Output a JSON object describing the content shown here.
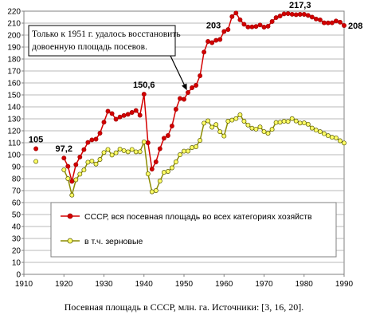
{
  "chart_data": {
    "type": "line",
    "xlim": [
      1910,
      1990
    ],
    "ylim": [
      0,
      220
    ],
    "x_ticks": [
      1910,
      1920,
      1930,
      1940,
      1950,
      1960,
      1970,
      1980,
      1990
    ],
    "y_ticks": [
      0,
      10,
      20,
      30,
      40,
      50,
      60,
      70,
      80,
      90,
      100,
      110,
      120,
      130,
      140,
      150,
      160,
      170,
      180,
      190,
      200,
      210,
      220
    ],
    "grid": true,
    "legend_position": "inside-bottom",
    "series": [
      {
        "name": "СССР, вся посевная площадь во всех категориях хозяйств",
        "color": "#d40000",
        "marker_fill": "#d40000",
        "x": [
          1913,
          1920,
          1921,
          1922,
          1923,
          1924,
          1925,
          1926,
          1927,
          1928,
          1929,
          1930,
          1931,
          1932,
          1933,
          1934,
          1935,
          1936,
          1937,
          1938,
          1939,
          1940,
          1941,
          1942,
          1943,
          1944,
          1945,
          1946,
          1947,
          1948,
          1949,
          1950,
          1951,
          1952,
          1953,
          1954,
          1955,
          1956,
          1957,
          1958,
          1959,
          1960,
          1961,
          1962,
          1963,
          1964,
          1965,
          1966,
          1967,
          1968,
          1969,
          1970,
          1971,
          1972,
          1973,
          1974,
          1975,
          1976,
          1977,
          1978,
          1979,
          1980,
          1981,
          1982,
          1983,
          1984,
          1985,
          1986,
          1987,
          1988,
          1989,
          1990
        ],
        "values": [
          105,
          97.2,
          90.3,
          77.7,
          91.7,
          98.1,
          104.3,
          110.3,
          112.4,
          113,
          118,
          127.2,
          136.3,
          134.4,
          129.7,
          131.5,
          132.8,
          133.8,
          135.3,
          136.9,
          133,
          150.6,
          110,
          88,
          94,
          105,
          113.8,
          116,
          124,
          138,
          147,
          146.3,
          152,
          156,
          158,
          166,
          185.8,
          194.7,
          193.7,
          195.6,
          196.3,
          203,
          204.6,
          215.5,
          218.5,
          212.8,
          209.1,
          206.8,
          206.9,
          207.2,
          208.5,
          206.7,
          207.4,
          211.3,
          214.6,
          215.9,
          217.7,
          217.9,
          217.4,
          217.1,
          217.3,
          217.3,
          216.5,
          215.1,
          213.5,
          212.7,
          210.3,
          210.2,
          210.3,
          211.8,
          210.8,
          208
        ]
      },
      {
        "name": "в т.ч. зерновые",
        "color": "#8c8c00",
        "marker_fill": "#ffff66",
        "x": [
          1913,
          1920,
          1921,
          1922,
          1923,
          1924,
          1925,
          1926,
          1927,
          1928,
          1929,
          1930,
          1931,
          1932,
          1933,
          1934,
          1935,
          1936,
          1937,
          1938,
          1939,
          1940,
          1941,
          1942,
          1943,
          1944,
          1945,
          1946,
          1947,
          1948,
          1949,
          1950,
          1951,
          1952,
          1953,
          1954,
          1955,
          1956,
          1957,
          1958,
          1959,
          1960,
          1961,
          1962,
          1963,
          1964,
          1965,
          1966,
          1967,
          1968,
          1969,
          1970,
          1971,
          1972,
          1973,
          1974,
          1975,
          1976,
          1977,
          1978,
          1979,
          1980,
          1981,
          1982,
          1983,
          1984,
          1985,
          1986,
          1987,
          1988,
          1989,
          1990
        ],
        "values": [
          94.4,
          87.4,
          80,
          66.2,
          79,
          83.7,
          87.3,
          93.7,
          94.7,
          92.2,
          96,
          101.8,
          104.4,
          99.7,
          101.6,
          104.7,
          103.4,
          102.4,
          104.4,
          102.4,
          102.5,
          110.7,
          84,
          69,
          70,
          78,
          85.3,
          86,
          89,
          94,
          100,
          102.9,
          103,
          106,
          106.7,
          112,
          126.4,
          128.3,
          123,
          125.2,
          119.2,
          115.6,
          128,
          128.9,
          130.2,
          133.3,
          128,
          124.8,
          122.2,
          121.4,
          123.2,
          119.3,
          117.9,
          121.2,
          126.9,
          127.1,
          127.9,
          127.8,
          130.2,
          128.2,
          126.5,
          126.6,
          125.5,
          122.3,
          120.6,
          119.3,
          117.6,
          115.9,
          114.6,
          114.1,
          111.7,
          109.8
        ]
      }
    ],
    "data_labels": [
      {
        "x": 1913,
        "y": 105,
        "text": "105",
        "pos": "above"
      },
      {
        "x": 1920,
        "y": 97.2,
        "text": "97,2",
        "pos": "above"
      },
      {
        "x": 1940,
        "y": 150.6,
        "text": "150,6",
        "pos": "above"
      },
      {
        "x": 1960,
        "y": 203,
        "text": "203",
        "pos": "left"
      },
      {
        "x": 1979,
        "y": 217.3,
        "text": "217,3",
        "pos": "above"
      },
      {
        "x": 1990,
        "y": 208,
        "text": "208",
        "pos": "right"
      }
    ],
    "annotation": {
      "lines": [
        "Только к 1951 г. удалось восстановить",
        "довоенную площадь  посевов."
      ],
      "arrow_to": {
        "x": 1951,
        "y": 152
      }
    },
    "caption": "Посевная площадь в СССР, млн. га. Источники: [3, 16, 20]."
  }
}
